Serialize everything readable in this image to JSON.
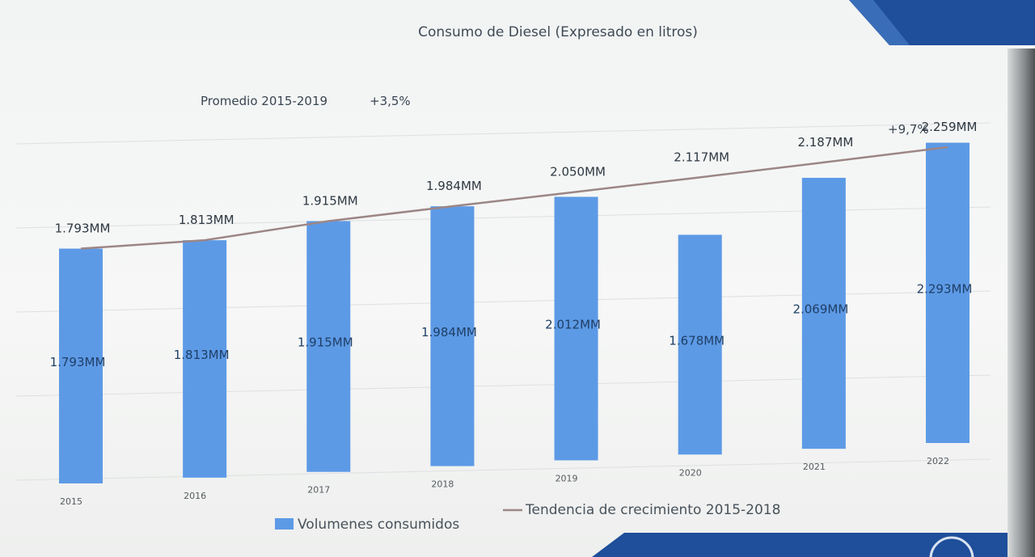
{
  "slide": {
    "brand_color": "#1f4e9a",
    "background": "#f4f5f4"
  },
  "chart_data": {
    "type": "bar",
    "title": "Consumo de Diesel (Expresado en litros)",
    "categories": [
      "2015",
      "2016",
      "2017",
      "2018",
      "2019",
      "2020",
      "2021",
      "2022"
    ],
    "series": [
      {
        "name": "Volumenes consumidos",
        "type": "bar",
        "color": "#5d9ae6",
        "values": [
          1793,
          1813,
          1915,
          1984,
          2012,
          1678,
          2069,
          2293
        ],
        "labels": [
          "1.793MM",
          "1.813MM",
          "1.915MM",
          "1.984MM",
          "2.012MM",
          "1.678MM",
          "2.069MM",
          "2.293MM"
        ]
      },
      {
        "name": "Tendencia de crecimiento 2015-2018",
        "type": "line",
        "color": "#9c8686",
        "values": [
          1793,
          1813,
          1915,
          1984,
          2050,
          2117,
          2187,
          2259
        ],
        "labels": [
          "1.793MM",
          "1.813MM",
          "1.915MM",
          "1.984MM",
          "2.050MM",
          "2.117MM",
          "2.187MM",
          "2.259MM"
        ]
      }
    ],
    "annotations": {
      "average_label": "Promedio 2015-2019",
      "average_value": "+3,5%",
      "growth_value": "+9,7%"
    },
    "legend_position": "bottom",
    "grid": true
  }
}
